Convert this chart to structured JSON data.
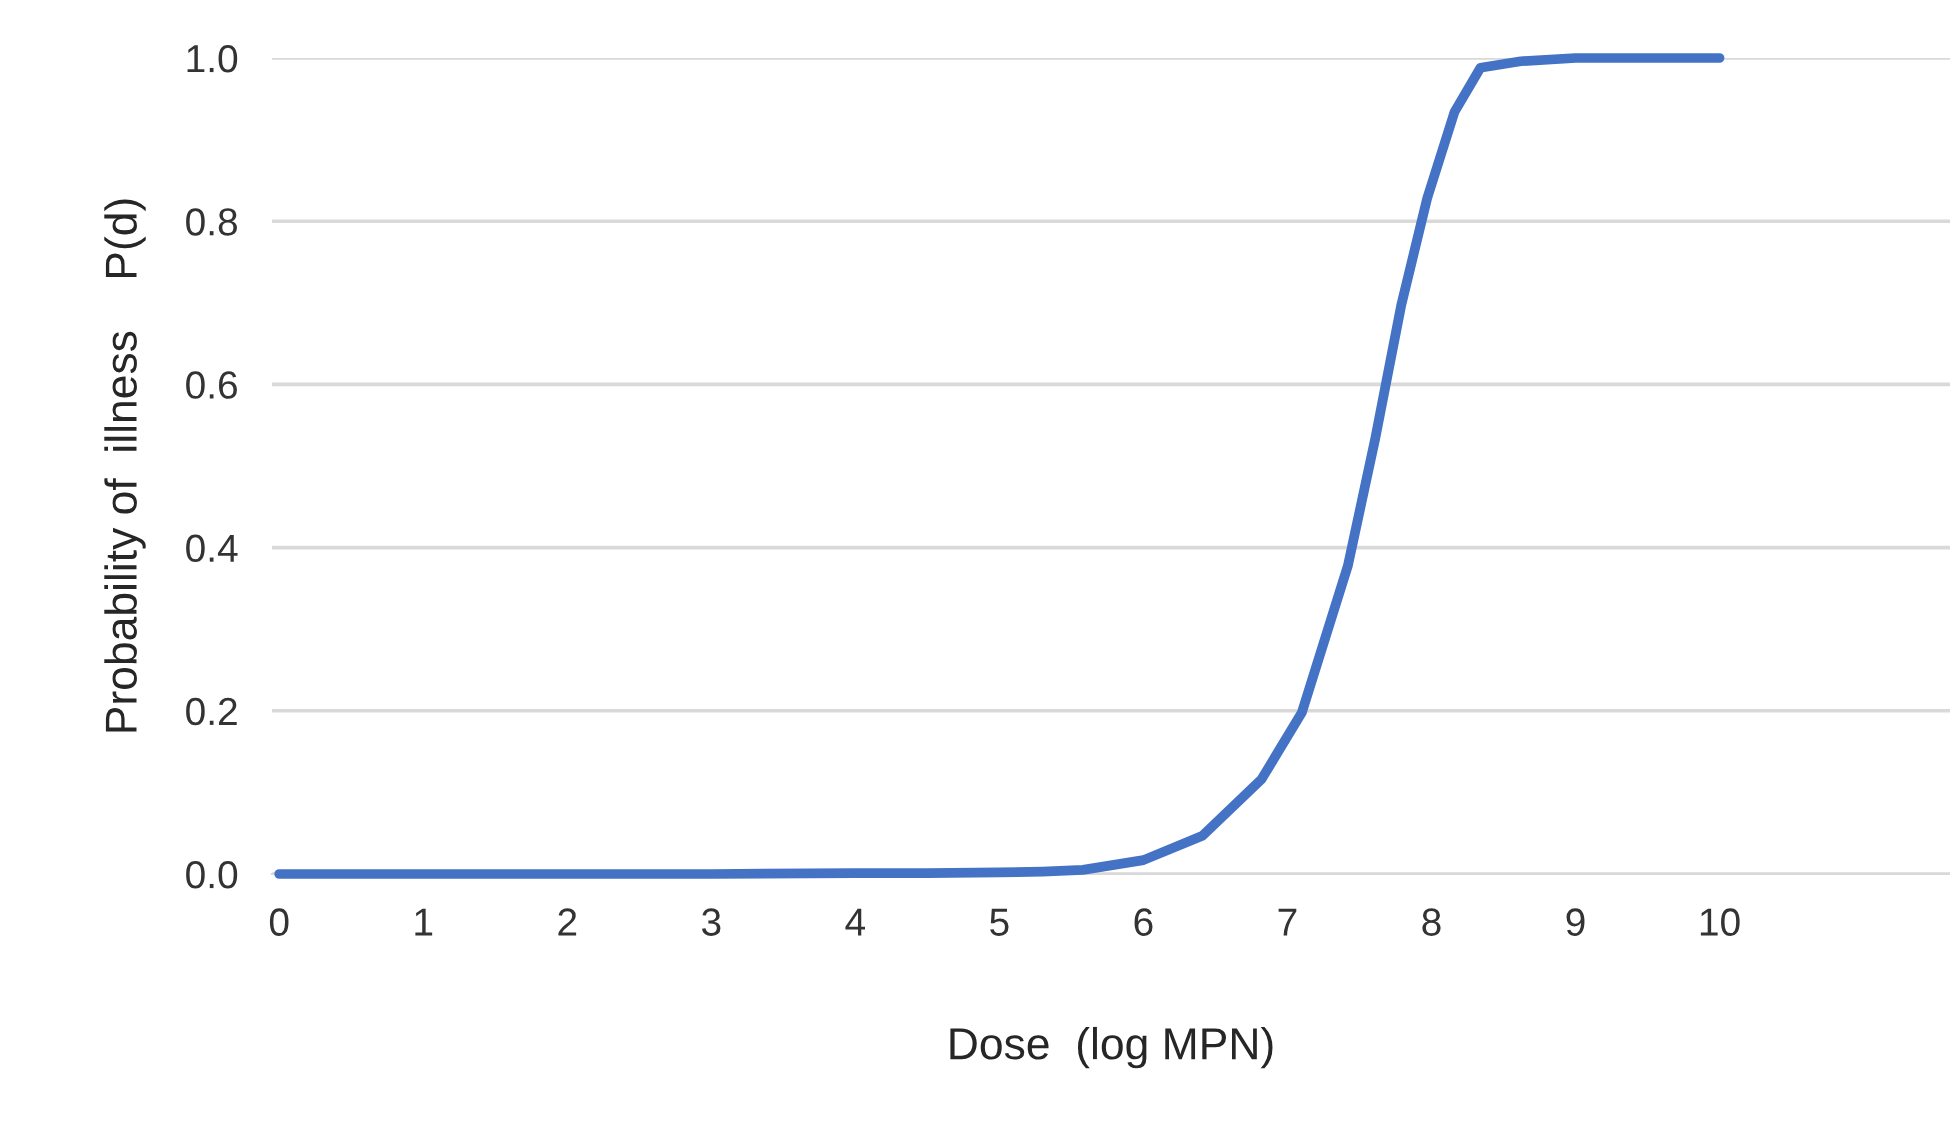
{
  "chart_data": {
    "type": "line",
    "xlabel": "Dose  (log MPN)",
    "ylabel": "Probability of  illness    P(d)",
    "series": [
      {
        "color": "#4472c4",
        "x": [
          0,
          1,
          2,
          3,
          4,
          4.5,
          5,
          5.3,
          5.58,
          6.0,
          6.41,
          6.82,
          7.1,
          7.42,
          7.61,
          7.79,
          7.97,
          8.16,
          8.34,
          8.62,
          9,
          10
        ],
        "values": [
          0,
          0,
          0,
          0,
          0.001,
          0.001,
          0.002,
          0.003,
          0.005,
          0.017,
          0.047,
          0.116,
          0.198,
          0.378,
          0.534,
          0.697,
          0.828,
          0.934,
          0.988,
          0.996,
          1.0,
          1.0
        ]
      }
    ],
    "xlim": [
      -0.05,
      11.6
    ],
    "xticks": [
      0,
      1,
      2,
      3,
      4,
      5,
      6,
      7,
      8,
      9,
      10
    ],
    "ylim": [
      0,
      1.0
    ],
    "yticks": [
      {
        "value": 0,
        "label": "0.0"
      },
      {
        "value": 0.2,
        "label": "0.2"
      },
      {
        "value": 0.4,
        "label": "0.4"
      },
      {
        "value": 0.6,
        "label": "0.6"
      },
      {
        "value": 0.8,
        "label": "0.8"
      },
      {
        "value": 1.0,
        "label": "1.0"
      }
    ],
    "grid": "y",
    "legend": false,
    "line_style": "solid",
    "marker": "none"
  }
}
